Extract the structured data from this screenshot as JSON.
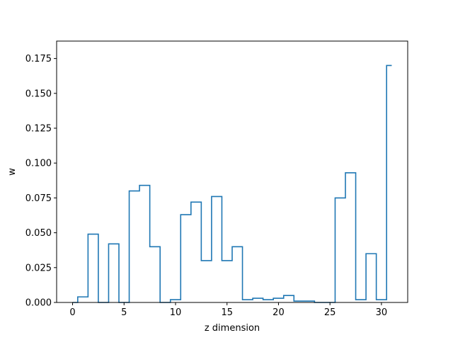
{
  "chart_data": {
    "type": "line",
    "drawstyle": "steps-mid",
    "title": "",
    "xlabel": "z dimension",
    "ylabel": "w",
    "xlim": [
      -1.55,
      32.55
    ],
    "ylim": [
      0,
      0.1875
    ],
    "xticks": [
      0,
      5,
      10,
      15,
      20,
      25,
      30
    ],
    "xtick_labels": [
      "0",
      "5",
      "10",
      "15",
      "20",
      "25",
      "30"
    ],
    "yticks": [
      0,
      0.025,
      0.05,
      0.075,
      0.1,
      0.125,
      0.15,
      0.175
    ],
    "ytick_labels": [
      "0.000",
      "0.025",
      "0.050",
      "0.075",
      "0.100",
      "0.125",
      "0.150",
      "0.175"
    ],
    "grid": false,
    "legend": "none",
    "series": [
      {
        "color": "#1f77b4",
        "x": [
          0,
          1,
          2,
          3,
          4,
          5,
          6,
          7,
          8,
          9,
          10,
          11,
          12,
          13,
          14,
          15,
          16,
          17,
          18,
          19,
          20,
          21,
          22,
          23,
          24,
          25,
          26,
          27,
          28,
          29,
          30,
          31
        ],
        "values": [
          0.0,
          0.004,
          0.049,
          0.0,
          0.042,
          0.0,
          0.08,
          0.084,
          0.04,
          0.0,
          0.002,
          0.063,
          0.072,
          0.03,
          0.076,
          0.03,
          0.04,
          0.002,
          0.003,
          0.002,
          0.003,
          0.005,
          0.001,
          0.001,
          0.0,
          0.0,
          0.075,
          0.093,
          0.002,
          0.035,
          0.002,
          0.17
        ]
      }
    ]
  }
}
